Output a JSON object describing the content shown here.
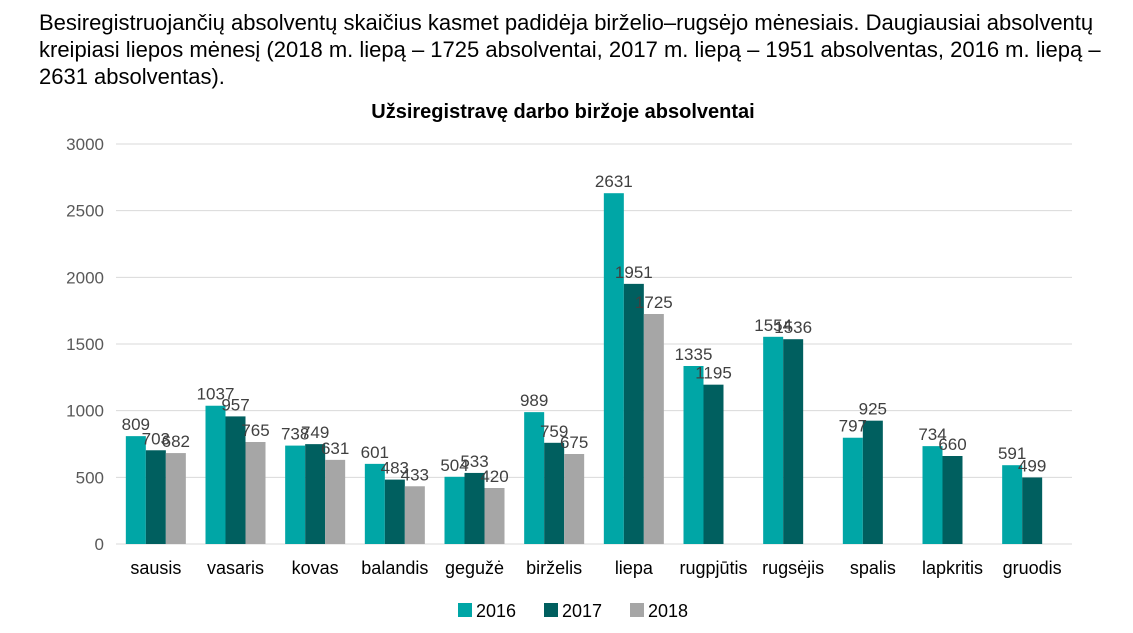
{
  "intro_text": "Besiregistruojančių absolventų skaičius kasmet padidėja birželio–rugsėjo mėnesiais. Daugiausiai absolventų kreipiasi liepos mėnesį (2018 m. liepą – 1725 absolventai, 2017 m. liepą – 1951 absolventas, 2016 m. liepą – 2631 absolventas).",
  "chart_data": {
    "type": "bar",
    "title": "Užsiregistravę darbo biržoje absolventai",
    "categories": [
      "sausis",
      "vasaris",
      "kovas",
      "balandis",
      "gegužė",
      "birželis",
      "liepa",
      "rugpjūtis",
      "rugsėjis",
      "spalis",
      "lapkritis",
      "gruodis"
    ],
    "series": [
      {
        "name": "2016",
        "color": "#00A6A6",
        "values": [
          809,
          1037,
          738,
          601,
          504,
          989,
          2631,
          1335,
          1554,
          797,
          734,
          591
        ]
      },
      {
        "name": "2017",
        "color": "#005F5F",
        "values": [
          703,
          957,
          749,
          483,
          533,
          759,
          1951,
          1195,
          1536,
          925,
          660,
          499
        ]
      },
      {
        "name": "2018",
        "color": "#A6A6A6",
        "values": [
          682,
          765,
          631,
          433,
          420,
          675,
          1725,
          null,
          null,
          null,
          null,
          null
        ]
      }
    ],
    "ylim": [
      0,
      3000
    ],
    "yticks": [
      0,
      500,
      1000,
      1500,
      2000,
      2500,
      3000
    ],
    "grid": true,
    "legend": "bottom"
  }
}
